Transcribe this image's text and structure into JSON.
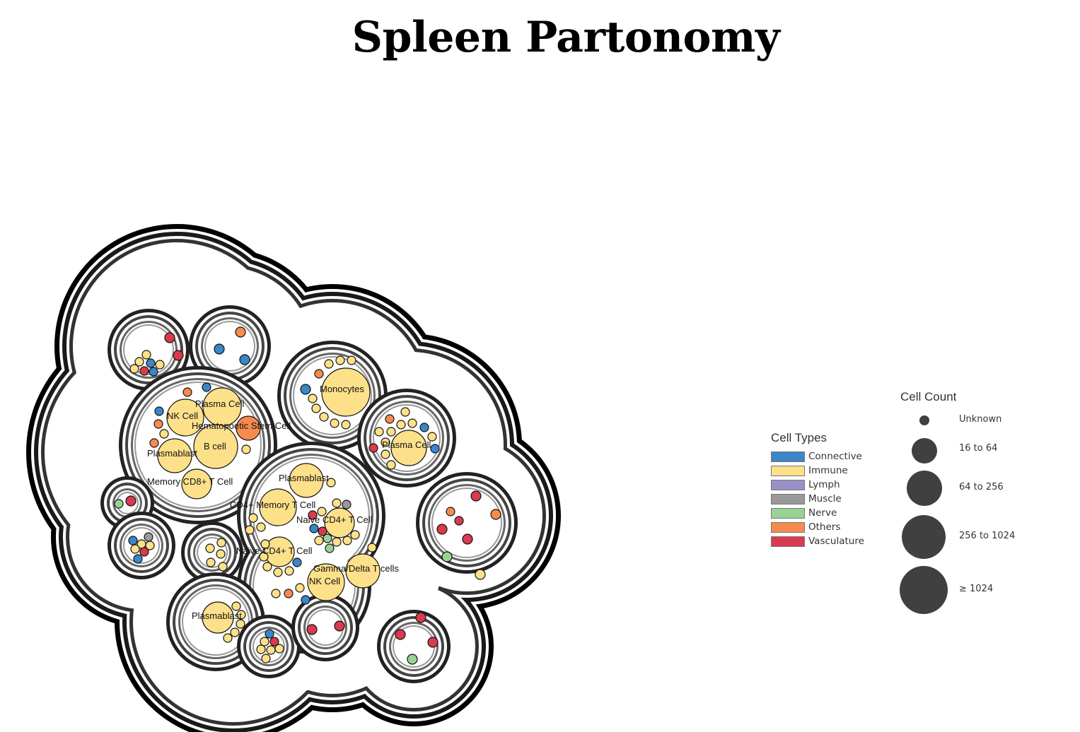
{
  "title": "Spleen Partonomy",
  "node_labels": {
    "monocytes": "Monocytes",
    "plasma_cell_top": "Plasma Cell",
    "nk_cell_left": "NK Cell",
    "hematopoietic_stem_cell": "Hematopoetic Stem Cell",
    "b_cell": "B cell",
    "plasmablast_left": "Plasmablast",
    "memory_cd8": "Memory CD8+ T Cell",
    "plasma_cell_right": "Plasma Cell",
    "plasmablast_center": "Plasmablast",
    "cd4_memory": "CD4+ Memory T Cell",
    "naive_cd4_a": "Naive CD4+ T Cell",
    "naive_cd4_b": "Naive CD4+ T Cell",
    "gamma_delta": "Gamma/Delta T cells",
    "nk_cell_center": "NK Cell",
    "plasmablast_bottom": "Plasmablast"
  },
  "legend_types": {
    "title": "Cell Types",
    "items": [
      {
        "label": "Connective",
        "color": "#3a86c8"
      },
      {
        "label": "Immune",
        "color": "#fde08a"
      },
      {
        "label": "Lymph",
        "color": "#9a90c8"
      },
      {
        "label": "Muscle",
        "color": "#999999"
      },
      {
        "label": "Nerve",
        "color": "#98d394"
      },
      {
        "label": "Others",
        "color": "#f68b4f"
      },
      {
        "label": "Vasculature",
        "color": "#d73b4d"
      }
    ]
  },
  "legend_count": {
    "title": "Cell Count",
    "items": [
      {
        "label": "Unknown"
      },
      {
        "label": "16 to 64"
      },
      {
        "label": "64 to 256"
      },
      {
        "label": "256 to 1024"
      },
      {
        "label": "≥ 1024"
      }
    ]
  }
}
